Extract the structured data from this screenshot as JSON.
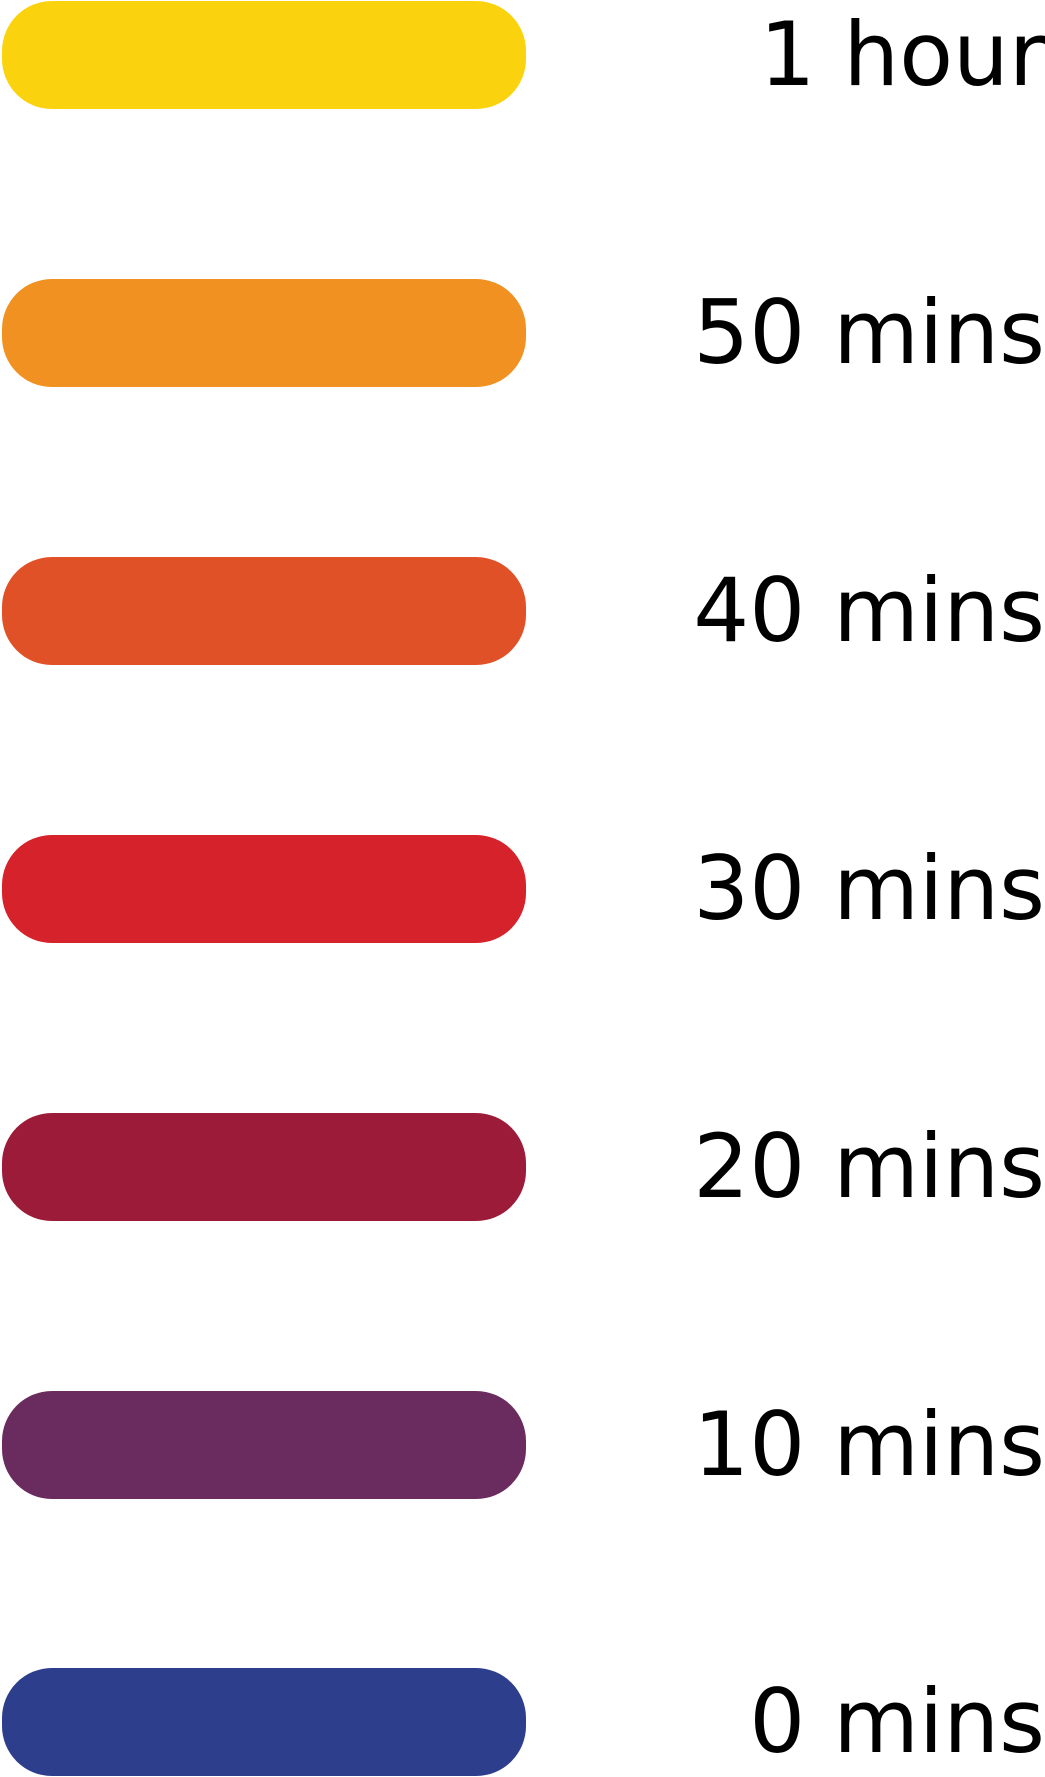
{
  "legend": {
    "items": [
      {
        "label": "1 hour",
        "color": "#FAD30E"
      },
      {
        "label": "50 mins",
        "color": "#F09121"
      },
      {
        "label": "40 mins",
        "color": "#E15127"
      },
      {
        "label": "30 mins",
        "color": "#D6222A"
      },
      {
        "label": "20 mins",
        "color": "#9C1B39"
      },
      {
        "label": "10 mins",
        "color": "#6A2C5F"
      },
      {
        "label": "0 mins",
        "color": "#2C3E8C"
      }
    ]
  }
}
